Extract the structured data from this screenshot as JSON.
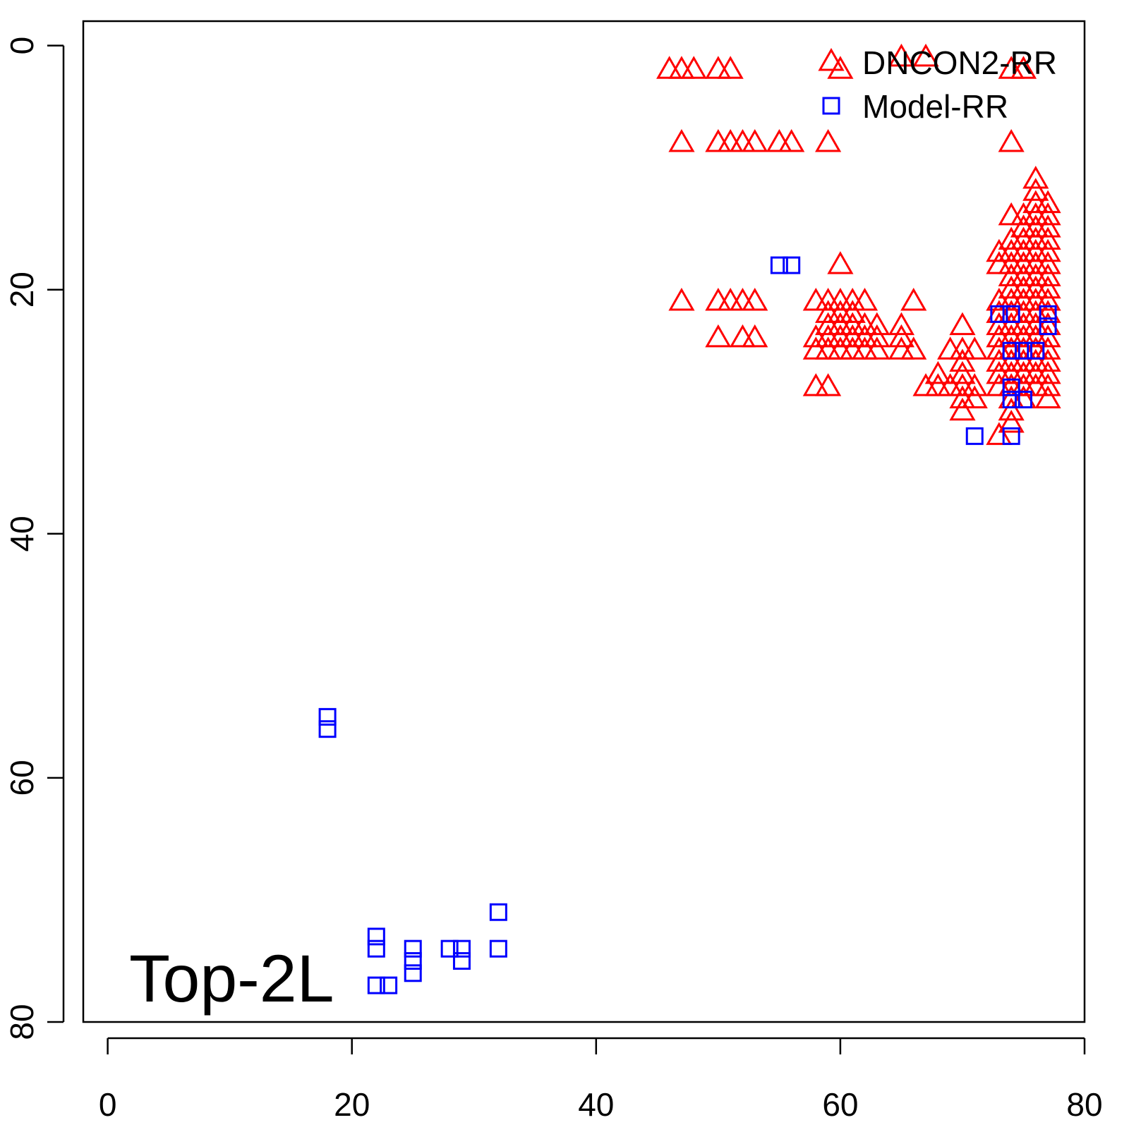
{
  "chart_data": {
    "type": "scatter",
    "annotation": "Top-2L",
    "xlim": [
      -2,
      80
    ],
    "ylim": [
      80,
      -2
    ],
    "xticks": [
      0,
      20,
      40,
      60,
      80
    ],
    "yticks": [
      0,
      20,
      40,
      60,
      80
    ],
    "legend": "top-right",
    "series": [
      {
        "name": "DNCON2-RR",
        "color": "#ff0000",
        "marker": "triangle",
        "x": [
          65,
          67,
          46,
          47,
          48,
          50,
          51,
          60,
          74,
          75,
          47,
          50,
          51,
          52,
          53,
          55,
          56,
          59,
          74,
          73,
          73,
          73,
          73,
          73,
          73,
          73,
          73,
          73,
          73,
          73,
          74,
          74,
          74,
          74,
          74,
          74,
          74,
          74,
          74,
          74,
          74,
          74,
          74,
          74,
          74,
          74,
          74,
          75,
          75,
          75,
          75,
          75,
          75,
          75,
          75,
          75,
          75,
          75,
          75,
          75,
          75,
          75,
          75,
          76,
          76,
          76,
          76,
          76,
          76,
          76,
          76,
          76,
          76,
          76,
          76,
          76,
          76,
          76,
          76,
          76,
          76,
          77,
          77,
          77,
          77,
          77,
          77,
          77,
          77,
          77,
          77,
          77,
          77,
          77,
          77,
          77,
          77,
          77,
          60,
          47,
          50,
          51,
          52,
          53,
          58,
          59,
          60,
          61,
          62,
          66,
          59,
          60,
          61,
          59,
          60,
          61,
          62,
          63,
          65,
          70,
          50,
          52,
          53,
          58,
          59,
          60,
          61,
          62,
          63,
          65,
          58,
          59,
          60,
          61,
          62,
          63,
          65,
          66,
          69,
          70,
          71,
          70,
          68,
          70,
          58,
          59,
          67,
          68,
          69,
          70,
          71,
          70,
          71,
          70
        ],
        "values": [
          1,
          1,
          2,
          2,
          2,
          2,
          2,
          2,
          2,
          2,
          8,
          8,
          8,
          8,
          8,
          8,
          8,
          8,
          8,
          17,
          18,
          21,
          22,
          23,
          24,
          25,
          26,
          27,
          28,
          32,
          14,
          16,
          17,
          18,
          19,
          20,
          21,
          22,
          23,
          24,
          25,
          26,
          27,
          28,
          29,
          30,
          31,
          14,
          15,
          16,
          17,
          18,
          19,
          20,
          21,
          22,
          23,
          24,
          25,
          26,
          27,
          28,
          29,
          11,
          12,
          13,
          14,
          15,
          16,
          17,
          18,
          19,
          20,
          21,
          22,
          23,
          24,
          25,
          26,
          27,
          28,
          13,
          14,
          15,
          16,
          17,
          18,
          19,
          20,
          21,
          22,
          23,
          24,
          25,
          26,
          27,
          28,
          29,
          18,
          21,
          21,
          21,
          21,
          21,
          21,
          21,
          21,
          21,
          21,
          21,
          22,
          22,
          22,
          23,
          23,
          23,
          23,
          23,
          23,
          23,
          24,
          24,
          24,
          24,
          24,
          24,
          24,
          24,
          24,
          24,
          25,
          25,
          25,
          25,
          25,
          25,
          25,
          25,
          25,
          25,
          25,
          26,
          27,
          27,
          28,
          28,
          28,
          28,
          28,
          28,
          28,
          29,
          29,
          30
        ]
      },
      {
        "name": "Model-RR",
        "color": "#0000ff",
        "marker": "square",
        "x": [
          55,
          56,
          73,
          74,
          77,
          77,
          74,
          75,
          76,
          74,
          74,
          75,
          71,
          74,
          18,
          18,
          32,
          22,
          22,
          25,
          28,
          29,
          32,
          25,
          29,
          25,
          22,
          23
        ],
        "values": [
          18,
          18,
          22,
          22,
          22,
          23,
          25,
          25,
          25,
          28,
          29,
          29,
          32,
          32,
          55,
          56,
          71,
          73,
          74,
          74,
          74,
          74,
          74,
          75,
          75,
          76,
          77,
          77
        ]
      }
    ]
  }
}
